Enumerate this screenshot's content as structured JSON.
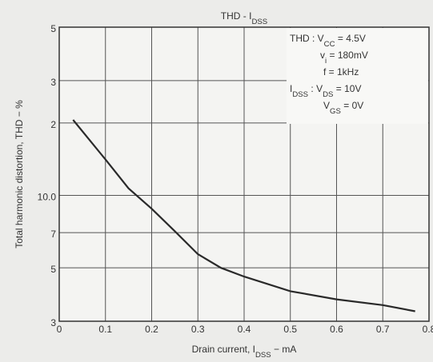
{
  "chart_data": {
    "type": "line",
    "title": [
      {
        "text": "THD - I"
      },
      {
        "text": "DSS",
        "sub": true
      }
    ],
    "xlabel": [
      {
        "text": "Drain current, I"
      },
      {
        "text": "DSS",
        "sub": true
      },
      {
        "text": " − mA"
      }
    ],
    "ylabel": "Total harmonic distortion, THD − %",
    "annotations": [
      [
        {
          "text": "THD : V"
        },
        {
          "text": "CC",
          "sub": true
        },
        {
          "text": " = 4.5V"
        }
      ],
      [
        {
          "text": "v"
        },
        {
          "text": "i",
          "sub": true
        },
        {
          "text": " = 180mV"
        }
      ],
      [
        {
          "text": "f = 1kHz"
        }
      ],
      [
        {
          "text": "I"
        },
        {
          "text": "DSS",
          "sub": true
        },
        {
          "text": " : V"
        },
        {
          "text": "DS",
          "sub": true
        },
        {
          "text": " = 10V"
        }
      ],
      [
        {
          "text": "V"
        },
        {
          "text": "GS",
          "sub": true
        },
        {
          "text": " = 0V"
        }
      ]
    ],
    "log_y": true,
    "grid": true,
    "xlim": [
      0,
      0.8
    ],
    "xticks": [
      0,
      0.1,
      0.2,
      0.3,
      0.4,
      0.5,
      0.6,
      0.7,
      0.8
    ],
    "ylim": [
      3,
      50
    ],
    "yticks": [
      3,
      5,
      7,
      {
        "value": 10,
        "label": "10.0"
      },
      {
        "value": 20,
        "label": "2"
      },
      {
        "value": 30,
        "label": "3"
      },
      {
        "value": 50,
        "label": "5"
      }
    ],
    "series": [
      {
        "color": "#2a2a2a",
        "x": [
          0.03,
          0.1,
          0.15,
          0.2,
          0.25,
          0.3,
          0.35,
          0.4,
          0.5,
          0.6,
          0.7,
          0.77
        ],
        "values": [
          20.6,
          14.1,
          10.7,
          8.8,
          7.1,
          5.7,
          5.0,
          4.6,
          4.0,
          3.7,
          3.5,
          3.3
        ]
      }
    ]
  }
}
